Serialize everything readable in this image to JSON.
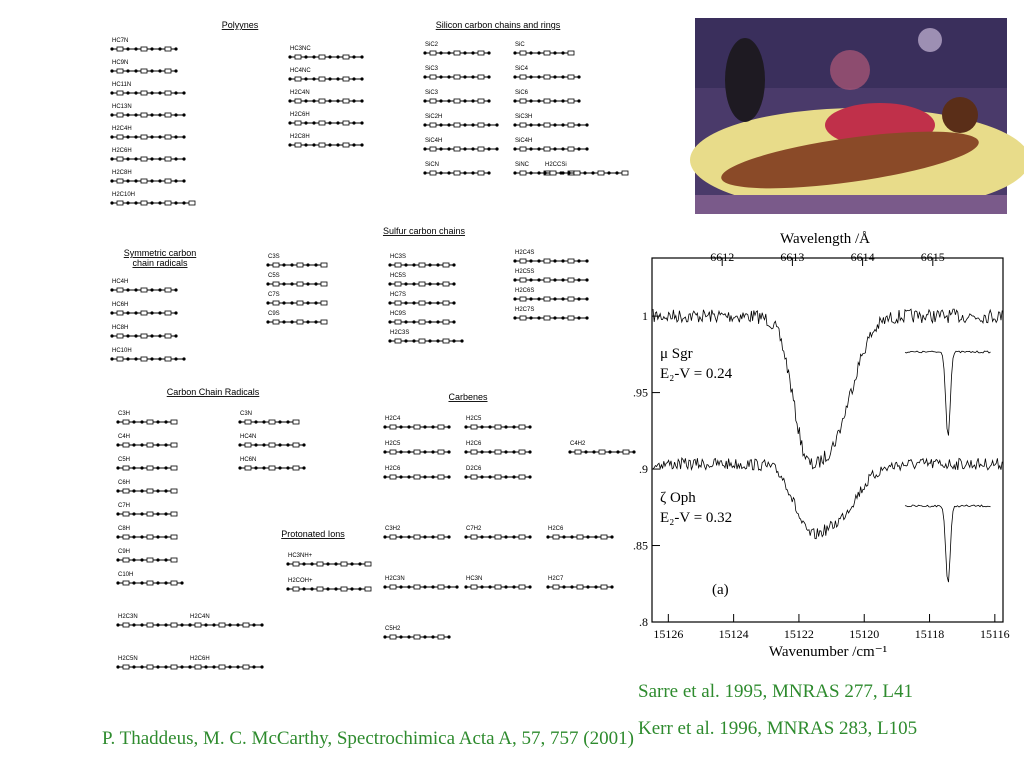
{
  "molecules": {
    "groups": [
      {
        "title": [
          "Polyynes"
        ],
        "columns": [
          [
            "HC7N",
            "HC9N",
            "HC11N",
            "HC13N",
            "H2C4H",
            "H2C6H",
            "H2C8H",
            "H2C10H"
          ],
          [
            "HC3NC",
            "HC4NC",
            "H2C4N",
            "H2C6H",
            "H2C8H"
          ]
        ]
      },
      {
        "title": [
          "Silicon carbon chains and rings"
        ],
        "columns": [
          [
            "SiC2",
            "SiC3",
            "SiC3",
            "SiC2H",
            "SiC4H",
            "SiCN"
          ],
          [
            "SiC",
            "SiC4",
            "SiC6",
            "SiC3H",
            "SiC4H",
            "SiNC"
          ],
          [
            "H2CCSi"
          ]
        ]
      },
      {
        "title": [
          "Symmetric carbon",
          "chain radicals"
        ],
        "columns": [
          [
            "HC4H",
            "HC6H",
            "HC8H",
            "HC10H"
          ]
        ]
      },
      {
        "title": [
          "Sulfur carbon chains"
        ],
        "columns": [
          [
            "C3S",
            "C5S",
            "C7S",
            "C9S"
          ],
          [
            "HC3S",
            "HC5S",
            "HC7S",
            "HC9S",
            "H2C3S"
          ],
          [
            "H2C4S",
            "H2C5S",
            "H2C6S",
            "H2C7S"
          ]
        ]
      },
      {
        "title": [
          "Carbon Chain Radicals"
        ],
        "columns": [
          [
            "C3H",
            "C4H",
            "C5H",
            "C6H",
            "C7H",
            "C8H",
            "C9H",
            "C10H"
          ],
          [
            "C3N",
            "HC4N",
            "HC6N"
          ],
          [
            "H2C3N",
            "H2C5N"
          ],
          [
            "H2C4N",
            "H2C6H"
          ]
        ]
      },
      {
        "title": [
          "Protonated Ions"
        ],
        "columns": [
          [
            "HC3NH+",
            "H2COH+"
          ]
        ]
      },
      {
        "title": [
          "Carbenes"
        ],
        "columns": [
          [
            "H2C4",
            "H2C5",
            "H2C6"
          ],
          [
            "H2C5",
            "H2C6",
            "D2C6"
          ],
          [
            "C4H2"
          ],
          [
            "C3H2",
            "H2C3N",
            "C5H2"
          ],
          [
            "C7H2",
            "HC3N"
          ],
          [
            "H2C6",
            "H2C7"
          ]
        ]
      }
    ]
  },
  "spectrum": {
    "top_axis_label": "Wavelength /Å",
    "bottom_axis_label": "Wavenumber /cm⁻¹",
    "xlim": [
      15126.5,
      15115.75
    ],
    "xticks": [
      15126,
      15124,
      15122,
      15120,
      15118,
      15116
    ],
    "x2lim": [
      6611,
      6616
    ],
    "x2ticks": [
      6612,
      6613,
      6614,
      6615
    ],
    "ylim": [
      0.8,
      1.038
    ],
    "yticks": [
      {
        "value": 1,
        "label": "1"
      },
      {
        "value": 0.95,
        "label": ".95"
      },
      {
        "value": 0.9,
        "label": ".9"
      },
      {
        "value": 0.85,
        "label": ".85"
      },
      {
        "value": 0.8,
        "label": ".8"
      }
    ],
    "annotations": [
      "μ Sgr",
      "E₂-V = 0.24",
      "ζ Oph",
      "E₂-V = 0.32",
      "(a)"
    ]
  },
  "citations": [
    "Sarre et al. 1995, MNRAS 277, L41",
    "Kerr et al. 1996, MNRAS 283, L105",
    "P. Thaddeus, M. C. McCarthy, Spectrochimica Acta A, 57, 757 (2001)"
  ]
}
